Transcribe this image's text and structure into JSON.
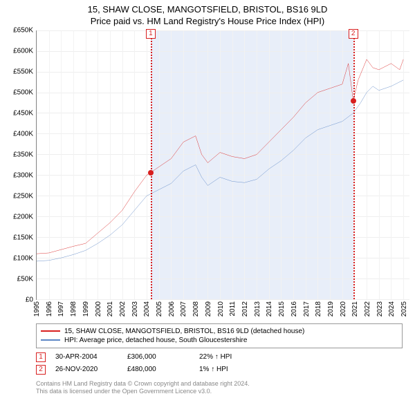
{
  "title_line1": "15, SHAW CLOSE, MANGOTSFIELD, BRISTOL, BS16 9LD",
  "title_line2": "Price paid vs. HM Land Registry's House Price Index (HPI)",
  "chart": {
    "type": "line",
    "background_color": "#ffffff",
    "grid_color": "#eeeeee",
    "shaded_region_color": "#e8eef9",
    "shaded_region_start_year": 2004.33,
    "shaded_region_end_year": 2020.9,
    "x_start": 1995,
    "x_end": 2025.5,
    "x_ticks": [
      1995,
      1996,
      1997,
      1998,
      1999,
      2000,
      2001,
      2002,
      2003,
      2004,
      2005,
      2006,
      2007,
      2008,
      2009,
      2010,
      2011,
      2012,
      2013,
      2014,
      2015,
      2016,
      2017,
      2018,
      2019,
      2020,
      2021,
      2022,
      2023,
      2024,
      2025
    ],
    "y_start": 0,
    "y_end": 650000,
    "y_tick_step": 50000,
    "y_ticks": [
      0,
      50000,
      100000,
      150000,
      200000,
      250000,
      300000,
      350000,
      400000,
      450000,
      500000,
      550000,
      600000,
      650000
    ],
    "y_tick_prefix": "£",
    "y_tick_suffix": "K",
    "series": [
      {
        "name": "15, SHAW CLOSE, MANGOTSFIELD, BRISTOL, BS16 9LD (detached house)",
        "color": "#d81e1e",
        "line_width": 1.5,
        "data": [
          [
            1995,
            110000
          ],
          [
            1996,
            112000
          ],
          [
            1997,
            120000
          ],
          [
            1998,
            128000
          ],
          [
            1999,
            135000
          ],
          [
            2000,
            160000
          ],
          [
            2001,
            185000
          ],
          [
            2002,
            215000
          ],
          [
            2003,
            260000
          ],
          [
            2004,
            300000
          ],
          [
            2005,
            320000
          ],
          [
            2006,
            340000
          ],
          [
            2007,
            380000
          ],
          [
            2008,
            395000
          ],
          [
            2008.5,
            350000
          ],
          [
            2009,
            330000
          ],
          [
            2010,
            355000
          ],
          [
            2011,
            345000
          ],
          [
            2012,
            340000
          ],
          [
            2013,
            350000
          ],
          [
            2014,
            380000
          ],
          [
            2015,
            410000
          ],
          [
            2016,
            440000
          ],
          [
            2017,
            475000
          ],
          [
            2018,
            500000
          ],
          [
            2019,
            510000
          ],
          [
            2020,
            520000
          ],
          [
            2020.5,
            570000
          ],
          [
            2020.9,
            480000
          ],
          [
            2021.3,
            530000
          ],
          [
            2022,
            580000
          ],
          [
            2022.5,
            560000
          ],
          [
            2023,
            555000
          ],
          [
            2024,
            570000
          ],
          [
            2024.7,
            555000
          ],
          [
            2025,
            580000
          ]
        ]
      },
      {
        "name": "HPI: Average price, detached house, South Gloucestershire",
        "color": "#5b86c5",
        "line_width": 1.5,
        "data": [
          [
            1995,
            92000
          ],
          [
            1996,
            94000
          ],
          [
            1997,
            100000
          ],
          [
            1998,
            108000
          ],
          [
            1999,
            118000
          ],
          [
            2000,
            135000
          ],
          [
            2001,
            155000
          ],
          [
            2002,
            180000
          ],
          [
            2003,
            215000
          ],
          [
            2004,
            250000
          ],
          [
            2005,
            265000
          ],
          [
            2006,
            280000
          ],
          [
            2007,
            310000
          ],
          [
            2008,
            325000
          ],
          [
            2008.5,
            295000
          ],
          [
            2009,
            275000
          ],
          [
            2010,
            295000
          ],
          [
            2011,
            285000
          ],
          [
            2012,
            282000
          ],
          [
            2013,
            290000
          ],
          [
            2014,
            315000
          ],
          [
            2015,
            335000
          ],
          [
            2016,
            360000
          ],
          [
            2017,
            390000
          ],
          [
            2018,
            410000
          ],
          [
            2019,
            420000
          ],
          [
            2020,
            430000
          ],
          [
            2020.9,
            450000
          ],
          [
            2021.5,
            475000
          ],
          [
            2022,
            500000
          ],
          [
            2022.5,
            515000
          ],
          [
            2023,
            505000
          ],
          [
            2024,
            515000
          ],
          [
            2025,
            530000
          ]
        ]
      }
    ],
    "events": [
      {
        "id": "1",
        "year": 2004.33,
        "date": "30-APR-2004",
        "price": "£306,000",
        "delta": "22% ↑ HPI",
        "marker_color": "#d81e1e",
        "y_value": 306000
      },
      {
        "id": "2",
        "year": 2020.9,
        "date": "26-NOV-2020",
        "price": "£480,000",
        "delta": "1% ↑ HPI",
        "marker_color": "#d81e1e",
        "y_value": 480000
      }
    ]
  },
  "legend": {
    "series1_label": "15, SHAW CLOSE, MANGOTSFIELD, BRISTOL, BS16 9LD (detached house)",
    "series2_label": "HPI: Average price, detached house, South Gloucestershire"
  },
  "footer_line1": "Contains HM Land Registry data © Crown copyright and database right 2024.",
  "footer_line2": "This data is licensed under the Open Government Licence v3.0."
}
